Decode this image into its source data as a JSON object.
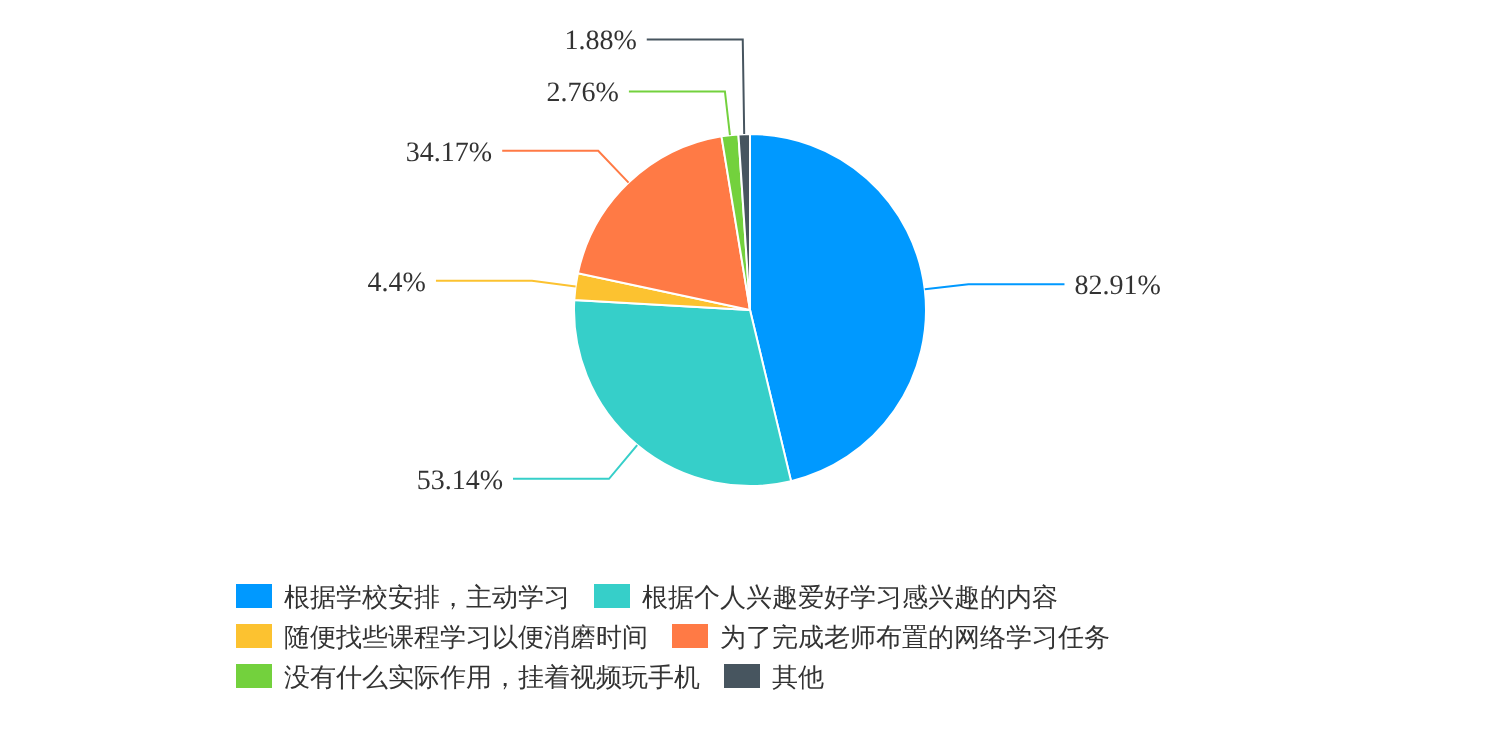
{
  "chart_data": {
    "type": "pie",
    "categories": [
      "根据学校安排，主动学习",
      "根据个人兴趣爱好学习感兴趣的内容",
      "随便找些课程学习以便消磨时间",
      "为了完成老师布置的网络学习任务",
      "没有什么实际作用，挂着视频玩手机",
      "其他"
    ],
    "values": [
      82.91,
      53.14,
      4.4,
      34.17,
      2.76,
      1.88
    ],
    "value_labels": [
      "82.91%",
      "53.14%",
      "4.4%",
      "34.17%",
      "2.76%",
      "1.88%"
    ],
    "colors": [
      "#0099ff",
      "#36cfc9",
      "#fcc230",
      "#ff7a45",
      "#73d13d",
      "#47555f"
    ],
    "legend": "bottom"
  }
}
